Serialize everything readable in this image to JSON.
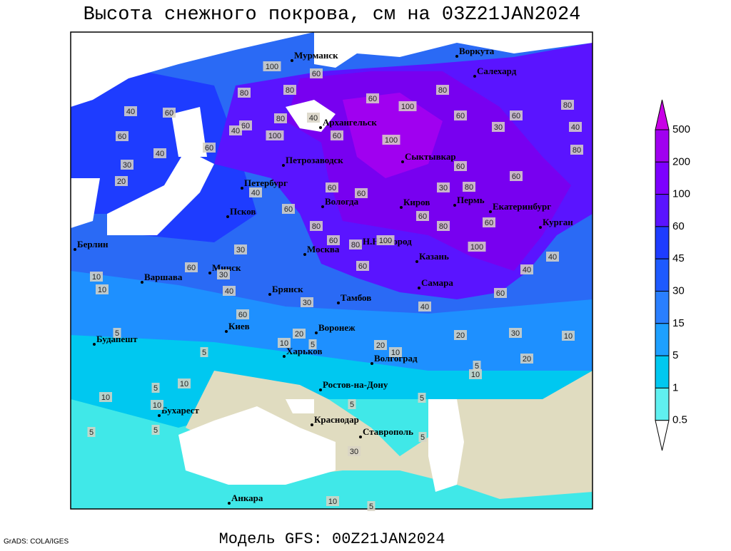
{
  "title": "Высота снежного покрова, см на 03Z21JAN2024",
  "footer": "Модель GFS: 00Z21JAN2024",
  "credit": "GrADS: COLA/IGES",
  "colorbar": {
    "levels": [
      500,
      200,
      100,
      60,
      45,
      30,
      15,
      5,
      1,
      0.5
    ],
    "colors": [
      "#c800e6",
      "#a000f0",
      "#7d00ff",
      "#5a14ff",
      "#1e3cff",
      "#1e5aff",
      "#2a7fff",
      "#1ea0ff",
      "#00c8f0",
      "#60f0f0",
      "#ffffff"
    ]
  },
  "cities": [
    "Мурманск",
    "Воркута",
    "Салехард",
    "Архангельск",
    "Сыктывкар",
    "Петрозаводск",
    "Петербург",
    "Вологда",
    "Киров",
    "Пермь",
    "Екатеринбург",
    "Курган",
    "Псков",
    "Берлин",
    "Н.Новгород",
    "Москва",
    "Казань",
    "Минск",
    "Варшава",
    "Самара",
    "Брянск",
    "Тамбов",
    "Киев",
    "Воронеж",
    "Будапешт",
    "Харьков",
    "Волгоград",
    "Ростов-на-Дону",
    "Бухарест",
    "Краснодар",
    "Ставрополь",
    "Анкара"
  ],
  "contour_labels": [
    40,
    60,
    60,
    40,
    60,
    80,
    100,
    80,
    60,
    80,
    100,
    60,
    40,
    40,
    60,
    60,
    100,
    100,
    80,
    60,
    30,
    60,
    80,
    40,
    80,
    60,
    60,
    80,
    30,
    60,
    80,
    60,
    100,
    40,
    40,
    60,
    40,
    60,
    100,
    60,
    80,
    80,
    60,
    60,
    60,
    40,
    40,
    30,
    30,
    60,
    10,
    10,
    60,
    20,
    10,
    5,
    10,
    5,
    10,
    10,
    5,
    5,
    5,
    5,
    20,
    10,
    20,
    30,
    10,
    20,
    10,
    5,
    30,
    5,
    5,
    10,
    5,
    5,
    20,
    30,
    30
  ]
}
